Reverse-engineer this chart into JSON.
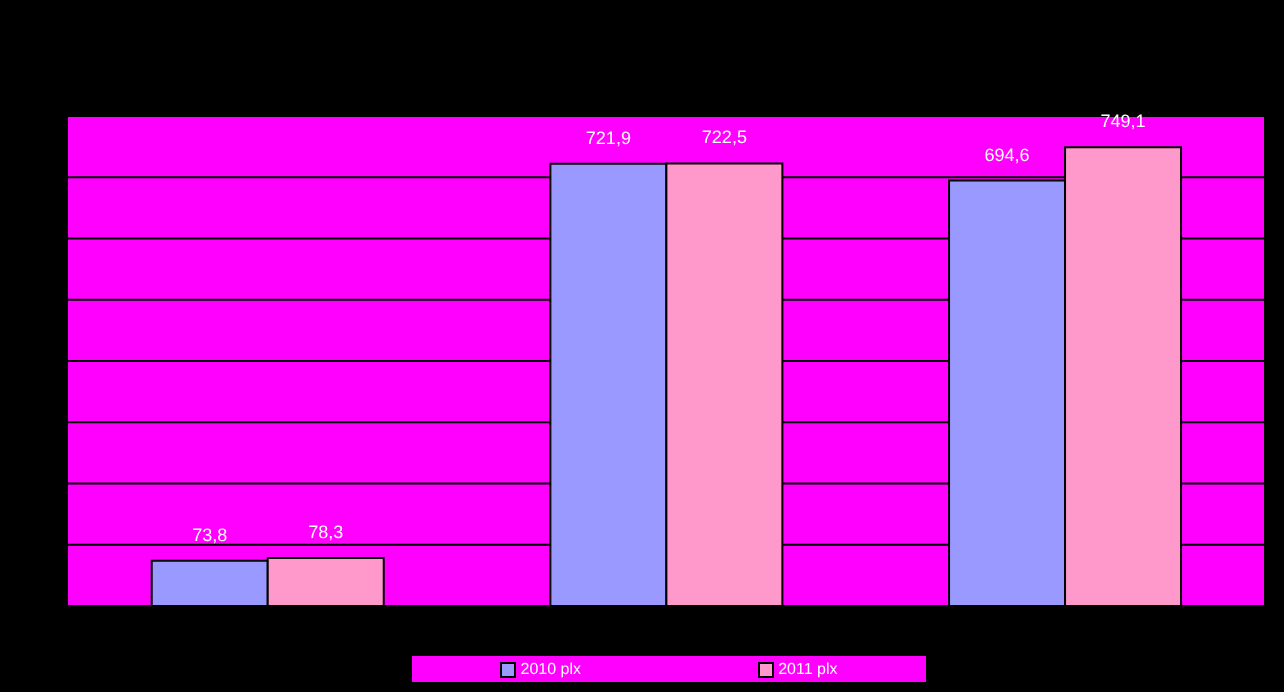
{
  "chart_data": {
    "type": "bar",
    "categories": [
      null,
      null,
      null
    ],
    "series": [
      {
        "name": "2010 plx",
        "color": "#9999ff",
        "values": [
          73.8,
          721.9,
          694.6
        ],
        "value_labels": [
          "73,8",
          "721,9",
          "694,6"
        ]
      },
      {
        "name": "2011 plx",
        "color": "#ff99cc",
        "values": [
          78.3,
          722.5,
          749.1
        ],
        "value_labels": [
          "78,3",
          "722,5",
          "749,1"
        ]
      }
    ],
    "ylim": [
      0,
      800
    ],
    "grid": "y",
    "legend": "bottom"
  }
}
